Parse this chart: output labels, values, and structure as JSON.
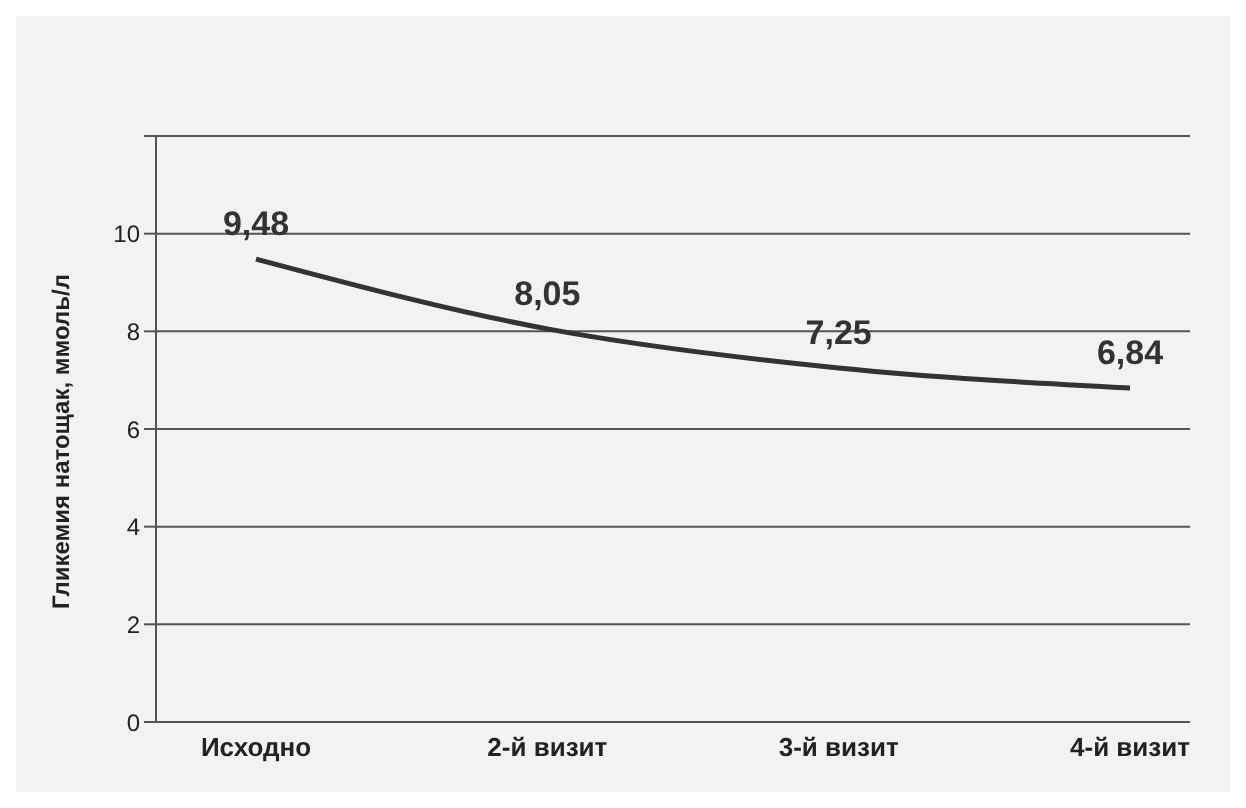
{
  "chart_data": {
    "type": "line",
    "ylabel": "Гликемия натощак, ммоль/л",
    "categories": [
      "Исходно",
      "2-й визит",
      "3-й визит",
      "4-й визит"
    ],
    "series": [
      {
        "color": "#333333",
        "values": [
          9.48,
          8.05,
          7.25,
          6.84
        ],
        "value_labels": [
          "9,48",
          "8,05",
          "7,25",
          "6,84"
        ]
      }
    ],
    "ylim": [
      0,
      12
    ],
    "yticks": [
      0,
      2,
      4,
      6,
      8,
      10,
      {
        "value": 12,
        "label": null
      }
    ],
    "grid": "y",
    "marker": "none",
    "legend": false
  }
}
